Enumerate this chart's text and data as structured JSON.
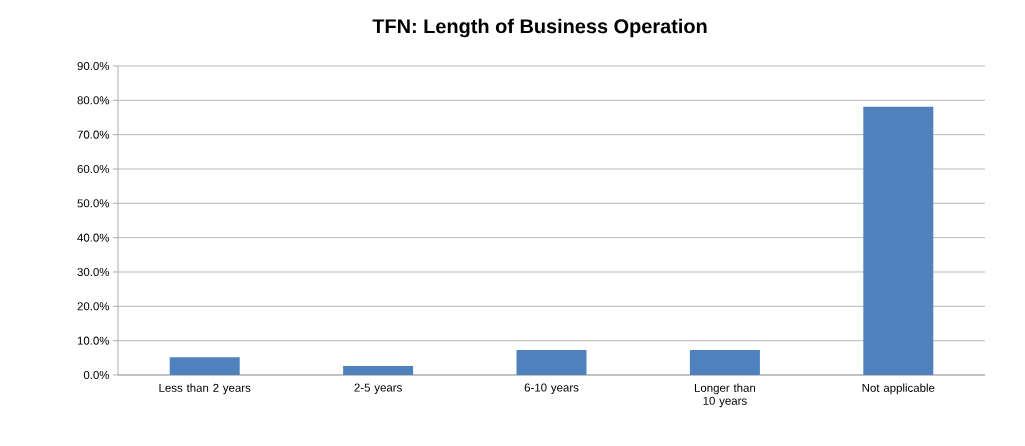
{
  "chart_data": {
    "type": "bar",
    "title": "TFN: Length of Business Operation",
    "categories": [
      "Less than 2 years",
      "2-5 years",
      "6-10 years",
      "Longer than 10 years",
      "Not applicable"
    ],
    "values": [
      5.2,
      2.6,
      7.3,
      7.3,
      78.1
    ],
    "color": "#4f81bd",
    "ylim": [
      0,
      90
    ],
    "yticks": [
      {
        "value": 0,
        "label": "0.0%"
      },
      {
        "value": 10,
        "label": "10.0%"
      },
      {
        "value": 20,
        "label": "20.0%"
      },
      {
        "value": 30,
        "label": "30.0%"
      },
      {
        "value": 40,
        "label": "40.0%"
      },
      {
        "value": 50,
        "label": "50.0%"
      },
      {
        "value": 60,
        "label": "60.0%"
      },
      {
        "value": 70,
        "label": "70.0%"
      },
      {
        "value": 80,
        "label": "80.0%"
      },
      {
        "value": 90,
        "label": "90.0%"
      }
    ],
    "grid": "y"
  }
}
